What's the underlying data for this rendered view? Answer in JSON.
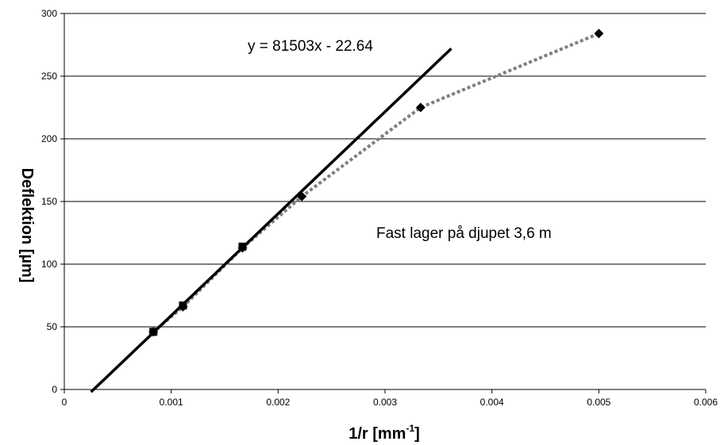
{
  "chart_data": {
    "type": "scatter",
    "xlabel": "1/r [mm",
    "xlabel_sup": "-1",
    "xlabel_end": "]",
    "ylabel": "Deflektion [µm]",
    "xlim": [
      0,
      0.006
    ],
    "ylim": [
      0,
      300
    ],
    "x_ticks": [
      0,
      0.001,
      0.002,
      0.003,
      0.004,
      0.005,
      0.006
    ],
    "x_tick_labels": [
      "0",
      "0.001",
      "0.002",
      "0.003",
      "0.004",
      "0.005",
      "0.006"
    ],
    "y_ticks": [
      0,
      50,
      100,
      150,
      200,
      250,
      300
    ],
    "y_tick_labels": [
      "0",
      "50",
      "100",
      "150",
      "200",
      "250",
      "300"
    ],
    "grid": "horizontal",
    "series": [
      {
        "style": "dotted-line-diamond-markers",
        "color": "#7f7f7f",
        "marker_color": "#000000",
        "x": [
          0.000833,
          0.00111,
          0.001667,
          0.002222,
          0.003333,
          0.005
        ],
        "y": [
          46,
          66,
          113,
          154,
          225,
          284
        ]
      },
      {
        "style": "square-markers",
        "color": "#000000",
        "x": [
          0.000833,
          0.00111,
          0.001667
        ],
        "y": [
          46,
          67,
          114
        ]
      },
      {
        "style": "solid-trendline",
        "color": "#000000",
        "x": [
          0.00025,
          0.00362
        ],
        "y": [
          -2,
          272
        ]
      }
    ],
    "annotations": {
      "equation": "y = 81503x - 22.64",
      "note": "Fast lager på djupet  3,6 m"
    }
  }
}
